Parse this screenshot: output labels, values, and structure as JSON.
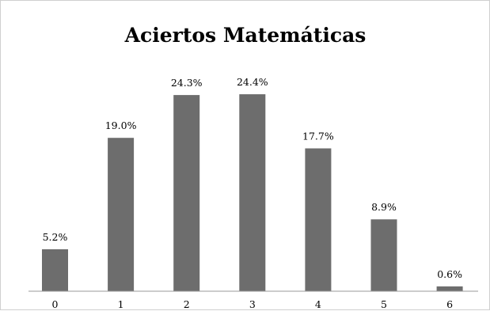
{
  "chart_data": {
    "type": "bar",
    "title": "Aciertos Matemáticas",
    "xlabel": "",
    "ylabel": "",
    "categories": [
      "0",
      "1",
      "2",
      "3",
      "4",
      "5",
      "6"
    ],
    "values": [
      5.2,
      19.0,
      24.3,
      24.4,
      17.7,
      8.9,
      0.6
    ],
    "data_labels": [
      "5.2%",
      "19.0%",
      "24.3%",
      "24.4%",
      "17.7%",
      "8.9%",
      "0.6%"
    ],
    "ylim": [
      0,
      28
    ],
    "grid": false,
    "legend": "none",
    "bar_color": "#6d6d6d",
    "axis_color": "#999999"
  }
}
